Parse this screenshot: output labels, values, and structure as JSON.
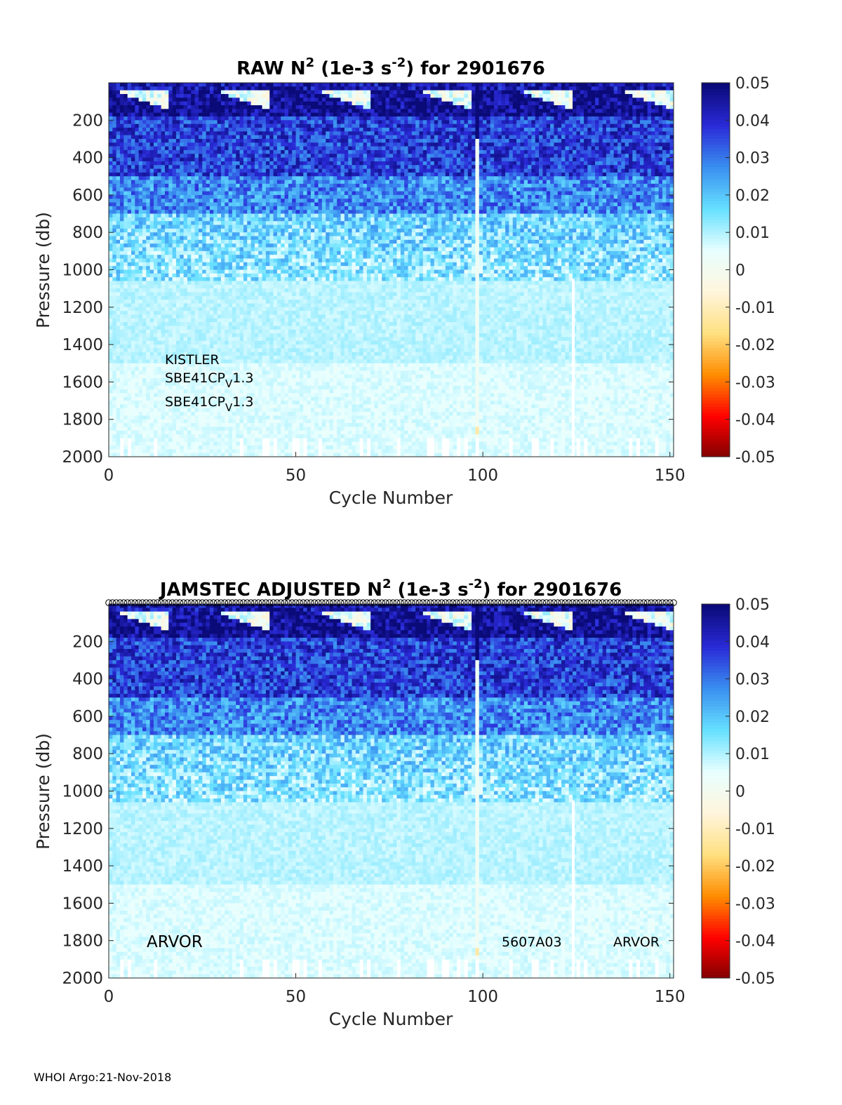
{
  "footer": "WHOI Argo:21-Nov-2018",
  "chart_data": [
    {
      "type": "heatmap",
      "title_main": "RAW N",
      "title_sup1": "2",
      "title_mid": " (1e-3 s",
      "title_sup2": "-2",
      "title_end": ") for 2901676",
      "xlabel": "Cycle Number",
      "ylabel": "Pressure (db)",
      "xlim": [
        0,
        151
      ],
      "ylim": [
        2000,
        0
      ],
      "xticks": [
        0,
        50,
        100,
        150
      ],
      "yticks": [
        200,
        400,
        600,
        800,
        1000,
        1200,
        1400,
        1600,
        1800,
        2000
      ],
      "colorbar": {
        "range": [
          -0.05,
          0.05
        ],
        "ticks": [
          "0.05",
          "0.04",
          "0.03",
          "0.02",
          "0.01",
          "0",
          "-0.01",
          "-0.02",
          "-0.03",
          "-0.04",
          "-0.05"
        ]
      },
      "colormap_anchors": [
        "#7f0000",
        "#ff0000",
        "#ff8c00",
        "#ffe080",
        "#fff5dc",
        "#e8ffff",
        "#66e0ff",
        "#3a8ff0",
        "#2a2ad8",
        "#0a0a78"
      ],
      "annotations": [
        {
          "text": "KISTLER"
        },
        {
          "text": "SBE41CP",
          "sub": "V",
          "tail": "1.3"
        },
        {
          "text": "SBE41CP",
          "sub": "V",
          "tail": "1.3"
        }
      ],
      "qc_markers": false
    },
    {
      "type": "heatmap",
      "title_main": "JAMSTEC  ADJUSTED N",
      "title_sup1": "2",
      "title_mid": " (1e-3 s",
      "title_sup2": "-2",
      "title_end": ") for 2901676",
      "xlabel": "Cycle Number",
      "ylabel": "Pressure (db)",
      "xlim": [
        0,
        151
      ],
      "ylim": [
        2000,
        0
      ],
      "xticks": [
        0,
        50,
        100,
        150
      ],
      "yticks": [
        200,
        400,
        600,
        800,
        1000,
        1200,
        1400,
        1600,
        1800,
        2000
      ],
      "colorbar": {
        "range": [
          -0.05,
          0.05
        ],
        "ticks": [
          "0.05",
          "0.04",
          "0.03",
          "0.02",
          "0.01",
          "0",
          "-0.01",
          "-0.02",
          "-0.03",
          "-0.04",
          "-0.05"
        ]
      },
      "colormap_anchors": [
        "#7f0000",
        "#ff0000",
        "#ff8c00",
        "#ffe080",
        "#fff5dc",
        "#e8ffff",
        "#66e0ff",
        "#3a8ff0",
        "#2a2ad8",
        "#0a0a78"
      ],
      "annotations": [
        {
          "text": "ARVOR"
        },
        {
          "text": "5607A03"
        },
        {
          "text": "ARVOR"
        }
      ],
      "qc_markers": true
    }
  ]
}
